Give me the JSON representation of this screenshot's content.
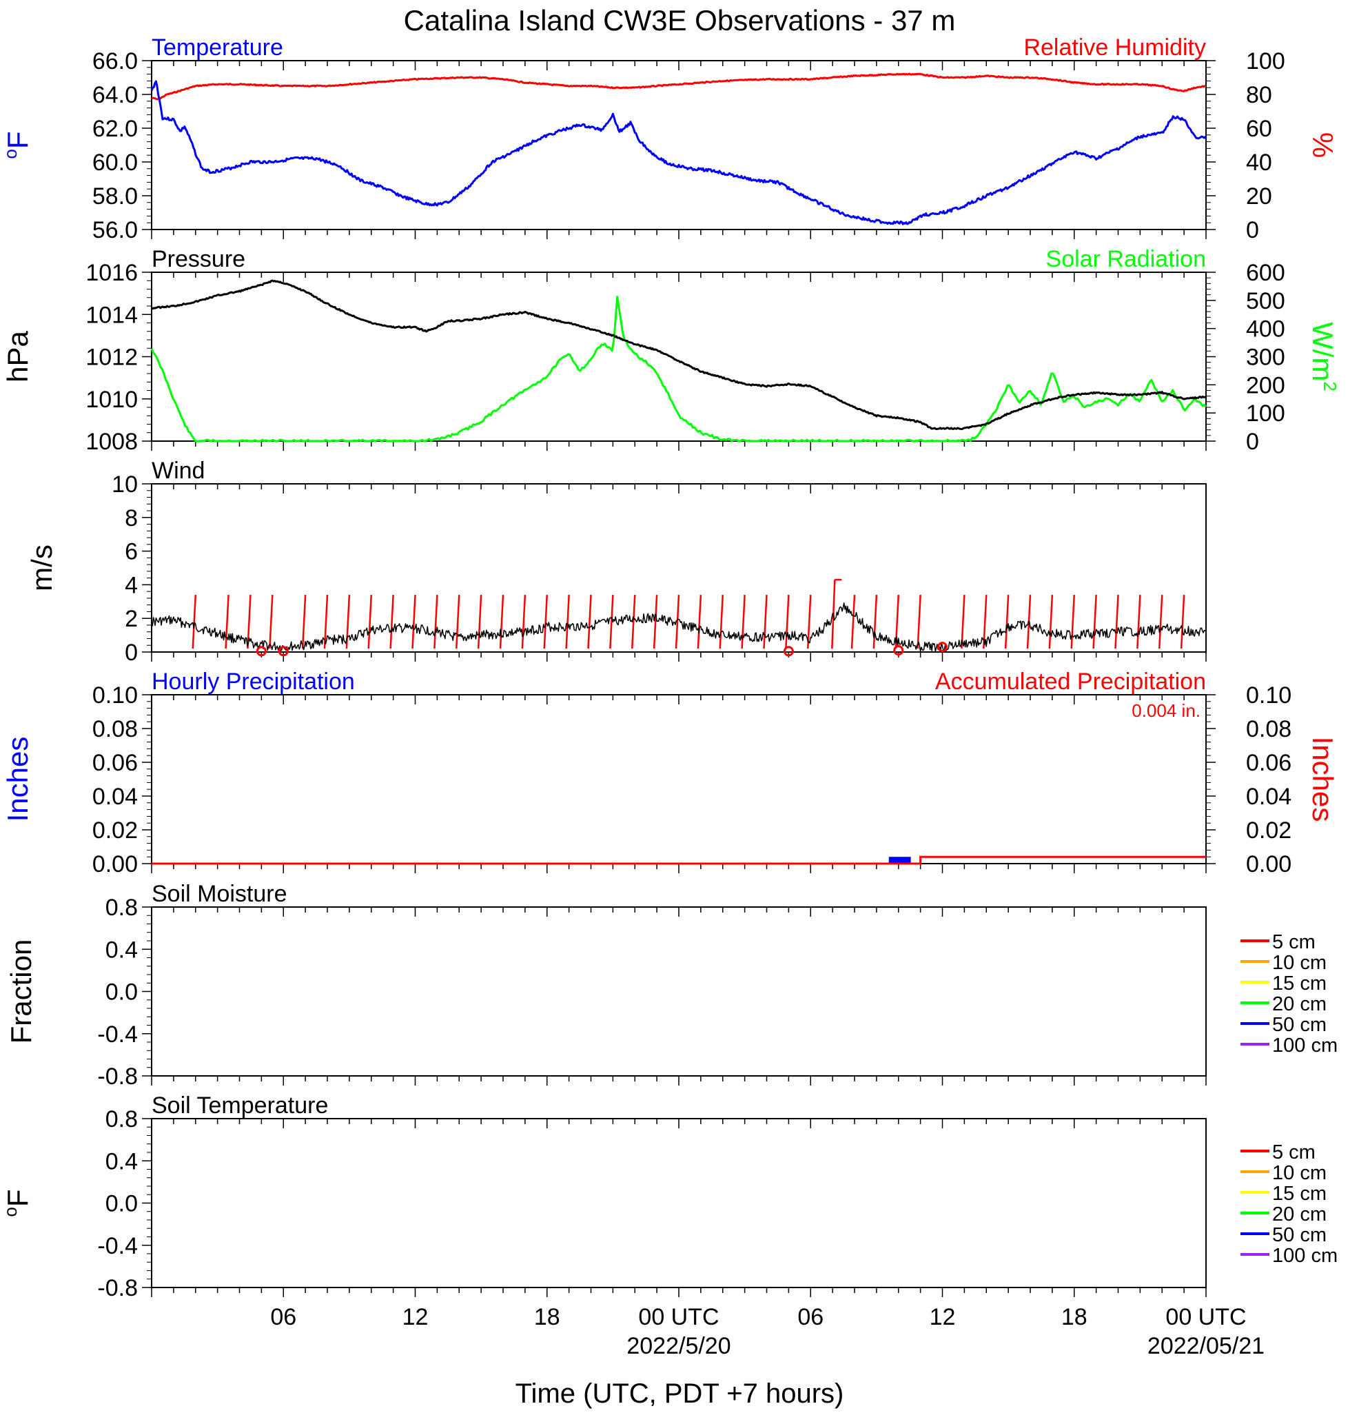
{
  "title": "Catalina Island CW3E Observations - 37 m",
  "x_axis": {
    "label": "Time (UTC, PDT +7 hours)",
    "ticks": [
      {
        "hour": 6,
        "label": "06",
        "sub": ""
      },
      {
        "hour": 12,
        "label": "12",
        "sub": ""
      },
      {
        "hour": 18,
        "label": "18",
        "sub": ""
      },
      {
        "hour": 24,
        "label": "00 UTC",
        "sub": "2022/5/20"
      },
      {
        "hour": 30,
        "label": "06",
        "sub": ""
      },
      {
        "hour": 36,
        "label": "12",
        "sub": ""
      },
      {
        "hour": 42,
        "label": "18",
        "sub": ""
      },
      {
        "hour": 48,
        "label": "00 UTC",
        "sub": "2022/05/21"
      }
    ]
  },
  "colors": {
    "temperature": "#0000ff",
    "humidity": "#ff0000",
    "pressure": "#000000",
    "solar": "#00ff00",
    "wind": "#000000",
    "barb": "#ff0000",
    "hourly_precip": "#0000ff",
    "accum_precip": "#ff0000"
  },
  "chart_data": [
    {
      "type": "line",
      "panel": "temperature_humidity",
      "left_title": "Temperature",
      "right_title": "Relative Humidity",
      "left_ylabel": "oF",
      "right_ylabel": "%",
      "left_ylim": [
        56,
        66
      ],
      "right_ylim": [
        0,
        100
      ],
      "left_ticks": [
        "66.0",
        "64.0",
        "62.0",
        "60.0",
        "58.0",
        "56.0"
      ],
      "right_ticks": [
        "100",
        "80",
        "60",
        "40",
        "20",
        "0"
      ],
      "x_hours": [
        0,
        48
      ],
      "series": [
        {
          "name": "Temperature",
          "axis": "left",
          "x": [
            0,
            0.2,
            0.5,
            1,
            1.3,
            1.5,
            1.8,
            2,
            2.3,
            2.7,
            3.5,
            4.5,
            5.5,
            6.5,
            7.5,
            8.5,
            9.5,
            10.5,
            11.5,
            12.5,
            13,
            13.5,
            14.5,
            15.5,
            16.5,
            17.5,
            18.5,
            19.5,
            20.5,
            21,
            21.3,
            21.8,
            22.2,
            22.7,
            23.5,
            24.5,
            25.5,
            26.5,
            27.5,
            28.5,
            29.5,
            30.5,
            31.5,
            32.5,
            33.5,
            34.5,
            35.2,
            35.7,
            36.3,
            37,
            38,
            39,
            40,
            41,
            42,
            43,
            44,
            45,
            46,
            46.5,
            47,
            47.5,
            48
          ],
          "values": [
            64.2,
            64.8,
            62.6,
            62.5,
            61.8,
            62.1,
            61.2,
            60.5,
            59.6,
            59.4,
            59.6,
            60.0,
            60.0,
            60.2,
            60.2,
            59.8,
            58.9,
            58.5,
            57.9,
            57.5,
            57.5,
            57.6,
            58.6,
            60.0,
            60.6,
            61.3,
            61.8,
            62.2,
            61.9,
            62.8,
            61.8,
            62.3,
            61.3,
            60.6,
            59.9,
            59.6,
            59.5,
            59.2,
            58.9,
            58.8,
            58.1,
            57.5,
            56.9,
            56.6,
            56.4,
            56.4,
            56.9,
            56.9,
            57.1,
            57.4,
            58.0,
            58.5,
            59.2,
            59.9,
            60.6,
            60.2,
            60.8,
            61.5,
            61.7,
            62.7,
            62.5,
            61.5,
            61.4
          ]
        },
        {
          "name": "Relative Humidity",
          "axis": "right",
          "x": [
            0,
            0.3,
            0.7,
            1,
            1.5,
            2,
            3,
            4,
            6,
            8,
            10,
            12,
            14,
            15,
            16,
            17,
            18,
            19,
            20,
            21,
            22,
            23,
            24,
            26,
            28,
            30,
            32,
            34,
            35,
            36,
            37,
            38,
            39,
            40,
            41,
            42,
            43,
            44,
            45,
            46,
            46.5,
            47,
            47.5,
            48
          ],
          "values": [
            78,
            77,
            80,
            81,
            83,
            85,
            86,
            86,
            85,
            85,
            87,
            89,
            90,
            90,
            89,
            87,
            86,
            85,
            85,
            84,
            84,
            85,
            86,
            88,
            89,
            89,
            91,
            92,
            92,
            90,
            90,
            91,
            90,
            90,
            89,
            87,
            86,
            86,
            86,
            85,
            83,
            82,
            84,
            85
          ]
        }
      ]
    },
    {
      "type": "line",
      "panel": "pressure_solar",
      "left_title": "Pressure",
      "right_title": "Solar Radiation",
      "left_ylabel": "hPa",
      "right_ylabel": "W/m2",
      "left_ylim": [
        1008,
        1016
      ],
      "right_ylim": [
        0,
        600
      ],
      "left_ticks": [
        "1016",
        "1014",
        "1012",
        "1010",
        "1008"
      ],
      "right_ticks": [
        "600",
        "500",
        "400",
        "300",
        "200",
        "100",
        "0"
      ],
      "x_hours": [
        0,
        48
      ],
      "series": [
        {
          "name": "Pressure",
          "axis": "left",
          "x": [
            0,
            1,
            2,
            3,
            4,
            5,
            5.5,
            6,
            7,
            8,
            9,
            10,
            11,
            12,
            12.5,
            13,
            13.5,
            14,
            15,
            16,
            17,
            18,
            19,
            20,
            21,
            22,
            23,
            24,
            25,
            26,
            27,
            28,
            29,
            30,
            31,
            32,
            33,
            34,
            35,
            35.5,
            36,
            37,
            38,
            39,
            40,
            41,
            42,
            43,
            44,
            45,
            46,
            47,
            48
          ],
          "values": [
            1014.3,
            1014.4,
            1014.6,
            1014.9,
            1015.1,
            1015.4,
            1015.6,
            1015.5,
            1015.1,
            1014.5,
            1014.0,
            1013.6,
            1013.4,
            1013.4,
            1013.2,
            1013.4,
            1013.7,
            1013.7,
            1013.8,
            1014.0,
            1014.1,
            1013.8,
            1013.6,
            1013.3,
            1013.0,
            1012.6,
            1012.3,
            1011.8,
            1011.3,
            1011.0,
            1010.7,
            1010.6,
            1010.7,
            1010.6,
            1010.1,
            1009.6,
            1009.2,
            1009.1,
            1008.9,
            1008.6,
            1008.6,
            1008.6,
            1008.8,
            1009.3,
            1009.7,
            1010.0,
            1010.2,
            1010.3,
            1010.2,
            1010.2,
            1010.3,
            1010.0,
            1010.1
          ]
        },
        {
          "name": "Solar Radiation",
          "axis": "right",
          "x": [
            0,
            0.5,
            1,
            1.5,
            1.8,
            2,
            3,
            6,
            9,
            11,
            12,
            13,
            14,
            15,
            16,
            17,
            18,
            18.5,
            19,
            19.5,
            20,
            20.5,
            21,
            21.2,
            21.5,
            22,
            22.5,
            23,
            23.5,
            24,
            25,
            26,
            27,
            28,
            30,
            33,
            36,
            37,
            37.5,
            38,
            38.5,
            39,
            39.5,
            40,
            40.5,
            41,
            41.5,
            42,
            42.5,
            43,
            43.5,
            44,
            44.5,
            45,
            45.5,
            46,
            46.5,
            47,
            47.5,
            48
          ],
          "values": [
            330,
            250,
            150,
            60,
            20,
            0,
            0,
            0,
            0,
            0,
            0,
            5,
            30,
            70,
            130,
            180,
            230,
            280,
            310,
            250,
            290,
            350,
            320,
            510,
            360,
            310,
            280,
            240,
            170,
            90,
            30,
            5,
            0,
            0,
            0,
            0,
            0,
            0,
            10,
            60,
            120,
            200,
            140,
            180,
            130,
            250,
            140,
            160,
            120,
            140,
            150,
            130,
            170,
            140,
            220,
            140,
            180,
            110,
            150,
            120
          ]
        }
      ]
    },
    {
      "type": "line",
      "panel": "wind",
      "left_title": "Wind",
      "left_ylabel": "m/s",
      "left_ylim": [
        0,
        10
      ],
      "left_ticks": [
        "10",
        "8",
        "6",
        "4",
        "2",
        "0"
      ],
      "x_hours": [
        0,
        48
      ],
      "series": [
        {
          "name": "Wind",
          "x": [
            0,
            1,
            2,
            3,
            4,
            5,
            6,
            7,
            8,
            9,
            10,
            11,
            12,
            13,
            14,
            15,
            16,
            17,
            18,
            19,
            20,
            21,
            22,
            23,
            24,
            25,
            26,
            27,
            28,
            29,
            30,
            30.5,
            31,
            31.5,
            32,
            32.5,
            33,
            34,
            35,
            36,
            37,
            38,
            39,
            40,
            41,
            42,
            43,
            44,
            45,
            46,
            47,
            48
          ],
          "values": [
            1.8,
            1.9,
            1.5,
            1.1,
            0.7,
            0.4,
            0.3,
            0.4,
            0.7,
            0.8,
            1.3,
            1.4,
            1.4,
            1.2,
            0.8,
            1.0,
            1.1,
            1.2,
            1.5,
            1.5,
            1.6,
            1.8,
            2.0,
            2.0,
            1.7,
            1.3,
            1.0,
            0.9,
            0.9,
            1.0,
            0.8,
            1.3,
            2.0,
            2.7,
            2.3,
            1.5,
            1.0,
            0.6,
            0.3,
            0.3,
            0.5,
            0.6,
            1.5,
            1.6,
            1.1,
            1.0,
            1.1,
            1.2,
            1.2,
            1.4,
            1.3,
            1.1
          ]
        }
      ],
      "barbs_x": [
        2,
        3.5,
        4.5,
        5.5,
        7,
        8,
        9,
        10,
        11,
        12,
        13,
        14,
        15,
        16,
        17,
        18,
        19,
        20,
        21,
        22,
        23,
        24,
        25,
        26,
        27,
        28,
        29,
        30,
        31.1,
        32,
        33,
        34,
        35,
        37,
        38,
        39,
        40,
        41,
        42,
        43,
        44,
        45,
        46,
        47
      ],
      "calm_circles_x": [
        5,
        6,
        29,
        34,
        36
      ],
      "calm_circles_y": [
        0.05,
        0.05,
        0.05,
        0.1,
        0.3
      ]
    },
    {
      "type": "bar",
      "panel": "precipitation",
      "left_title": "Hourly Precipitation",
      "right_title": "Accumulated Precipitation",
      "annotation": "0.004 in.",
      "left_ylabel": "Inches",
      "right_ylabel": "Inches",
      "left_ylim": [
        0,
        0.1
      ],
      "right_ylim": [
        0,
        0.1
      ],
      "left_ticks": [
        "0.10",
        "0.08",
        "0.06",
        "0.04",
        "0.02",
        "0.00"
      ],
      "right_ticks": [
        "0.10",
        "0.08",
        "0.06",
        "0.04",
        "0.02",
        "0.00"
      ],
      "x_hours": [
        0,
        48
      ],
      "hourly_bars": [
        {
          "x_start": 34,
          "x_end": 35,
          "value": 0.004
        }
      ],
      "accumulated": {
        "x": [
          0,
          35,
          35,
          48
        ],
        "values": [
          0,
          0,
          0.004,
          0.004
        ]
      }
    },
    {
      "type": "line",
      "panel": "soil_moisture",
      "left_title": "Soil Moisture",
      "left_ylabel": "Fraction",
      "left_ylim": [
        -1,
        1
      ],
      "left_ticks": [
        "0.8",
        "0.4",
        "0.0",
        "-0.4",
        "-0.8"
      ],
      "x_hours": [
        0,
        48
      ],
      "legend": [
        {
          "label": "5 cm",
          "color": "#ff0000"
        },
        {
          "label": "10 cm",
          "color": "#ffa500"
        },
        {
          "label": "15 cm",
          "color": "#ffff00"
        },
        {
          "label": "20 cm",
          "color": "#00ff00"
        },
        {
          "label": "50 cm",
          "color": "#0000ff"
        },
        {
          "label": "100 cm",
          "color": "#a020f0"
        }
      ],
      "series": []
    },
    {
      "type": "line",
      "panel": "soil_temperature",
      "left_title": "Soil Temperature",
      "left_ylabel": "oF",
      "left_ylim": [
        -1,
        1
      ],
      "left_ticks": [
        "0.8",
        "0.4",
        "0.0",
        "-0.4",
        "-0.8"
      ],
      "x_hours": [
        0,
        48
      ],
      "legend": [
        {
          "label": "5 cm",
          "color": "#ff0000"
        },
        {
          "label": "10 cm",
          "color": "#ffa500"
        },
        {
          "label": "15 cm",
          "color": "#ffff00"
        },
        {
          "label": "20 cm",
          "color": "#00ff00"
        },
        {
          "label": "50 cm",
          "color": "#0000ff"
        },
        {
          "label": "100 cm",
          "color": "#a020f0"
        }
      ],
      "series": []
    }
  ]
}
